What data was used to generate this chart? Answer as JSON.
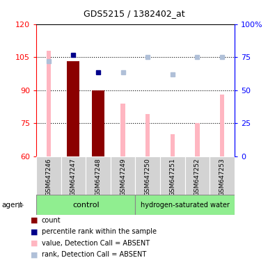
{
  "title": "GDS5215 / 1382402_at",
  "samples": [
    "GSM647246",
    "GSM647247",
    "GSM647248",
    "GSM647249",
    "GSM647250",
    "GSM647251",
    "GSM647252",
    "GSM647253"
  ],
  "bar_values": [
    null,
    103,
    90,
    null,
    null,
    null,
    null,
    null
  ],
  "pink_values": [
    108,
    null,
    null,
    84,
    79,
    70,
    75,
    88
  ],
  "blue_square_values": [
    null,
    106,
    98,
    null,
    null,
    null,
    null,
    null
  ],
  "lavender_square_values": [
    103,
    null,
    null,
    98,
    105,
    97,
    105,
    105
  ],
  "ylim_left": [
    60,
    120
  ],
  "ylim_right": [
    0,
    100
  ],
  "left_ticks": [
    60,
    75,
    90,
    105,
    120
  ],
  "right_ticks": [
    0,
    25,
    50,
    75,
    100
  ],
  "right_tick_labels": [
    "0",
    "25",
    "50",
    "75",
    "100%"
  ],
  "bar_width": 0.5,
  "pink_bar_width": 0.18,
  "dark_red": "#8B0000",
  "dark_blue": "#00008B",
  "pink": "#FFB6C1",
  "lavender": "#B0C0D8",
  "light_green": "#90EE90",
  "gray_bg": "#D3D3D3",
  "legend_labels": [
    "count",
    "percentile rank within the sample",
    "value, Detection Call = ABSENT",
    "rank, Detection Call = ABSENT"
  ],
  "legend_colors": [
    "#8B0000",
    "#00008B",
    "#FFB6C1",
    "#B0C0D8"
  ]
}
